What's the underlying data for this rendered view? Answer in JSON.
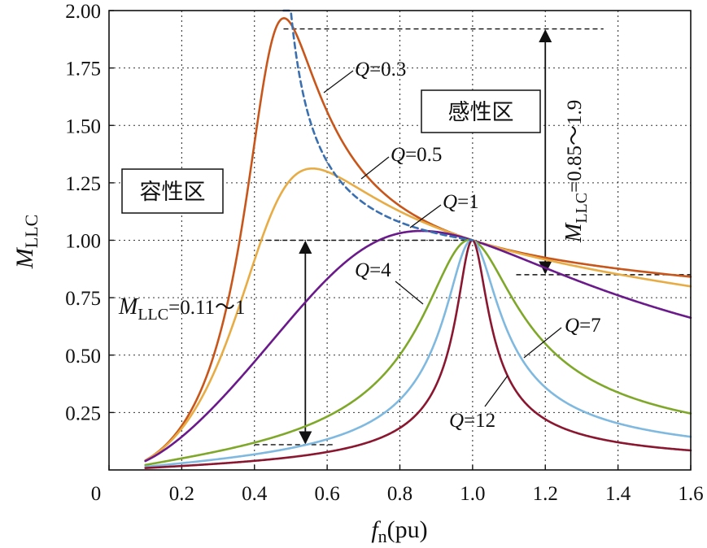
{
  "chart_data": {
    "type": "line",
    "title": "",
    "xlabel": {
      "main": "f",
      "sub": "n",
      "suffix": "(pu)"
    },
    "ylabel": {
      "main": "M",
      "sub": "LLC"
    },
    "xlim": [
      0,
      1.6
    ],
    "ylim": [
      0,
      2.0
    ],
    "x_ticks": [
      0,
      0.2,
      0.4,
      0.6,
      0.8,
      1.0,
      1.2,
      1.4,
      1.6
    ],
    "x_tick_labels": [
      "0",
      "0.2",
      "0.4",
      "0.6",
      "0.8",
      "1.0",
      "1.2",
      "1.4",
      "1.6"
    ],
    "y_ticks": [
      0.25,
      0.5,
      0.75,
      1.0,
      1.25,
      1.5,
      1.75,
      2.0
    ],
    "y_tick_labels": [
      "0.25",
      "0.50",
      "0.75",
      "1.00",
      "1.25",
      "1.50",
      "1.75",
      "2.00"
    ],
    "grid": true,
    "model": {
      "k": 4,
      "x_start": 0.1,
      "x_end": 1.6
    },
    "series": [
      {
        "id": "q03",
        "Q": 0.3,
        "label_q": "Q",
        "label_rest": "=0.3",
        "color": "#c8561a"
      },
      {
        "id": "q05",
        "Q": 0.5,
        "label_q": "Q",
        "label_rest": "=0.5",
        "color": "#e8ac45"
      },
      {
        "id": "q1",
        "Q": 1,
        "label_q": "Q",
        "label_rest": "=1",
        "color": "#6a1a8a"
      },
      {
        "id": "q4",
        "Q": 4,
        "label_q": "Q",
        "label_rest": "=4",
        "color": "#7fa82a"
      },
      {
        "id": "q7",
        "Q": 7,
        "label_q": "Q",
        "label_rest": "=7",
        "color": "#7fb9e0"
      },
      {
        "id": "q12",
        "Q": 12,
        "label_q": "Q",
        "label_rest": "=12",
        "color": "#8a1630"
      }
    ],
    "boundary": {
      "color": "#3a6fb0",
      "x_start": 0.48,
      "x_end": 1.0
    },
    "regions": [
      {
        "id": "capacitive",
        "label": "容性区"
      },
      {
        "id": "inductive",
        "label": "感性区"
      }
    ],
    "ranges": [
      {
        "id": "low",
        "prefix": "M",
        "sub": "LLC",
        "rest": "=0.11～1",
        "from": 0.11,
        "to": 1.0
      },
      {
        "id": "high",
        "prefix": "M",
        "sub": "LLC",
        "rest": "=0.85～1.9",
        "from": 0.85,
        "to": 1.92
      }
    ]
  }
}
